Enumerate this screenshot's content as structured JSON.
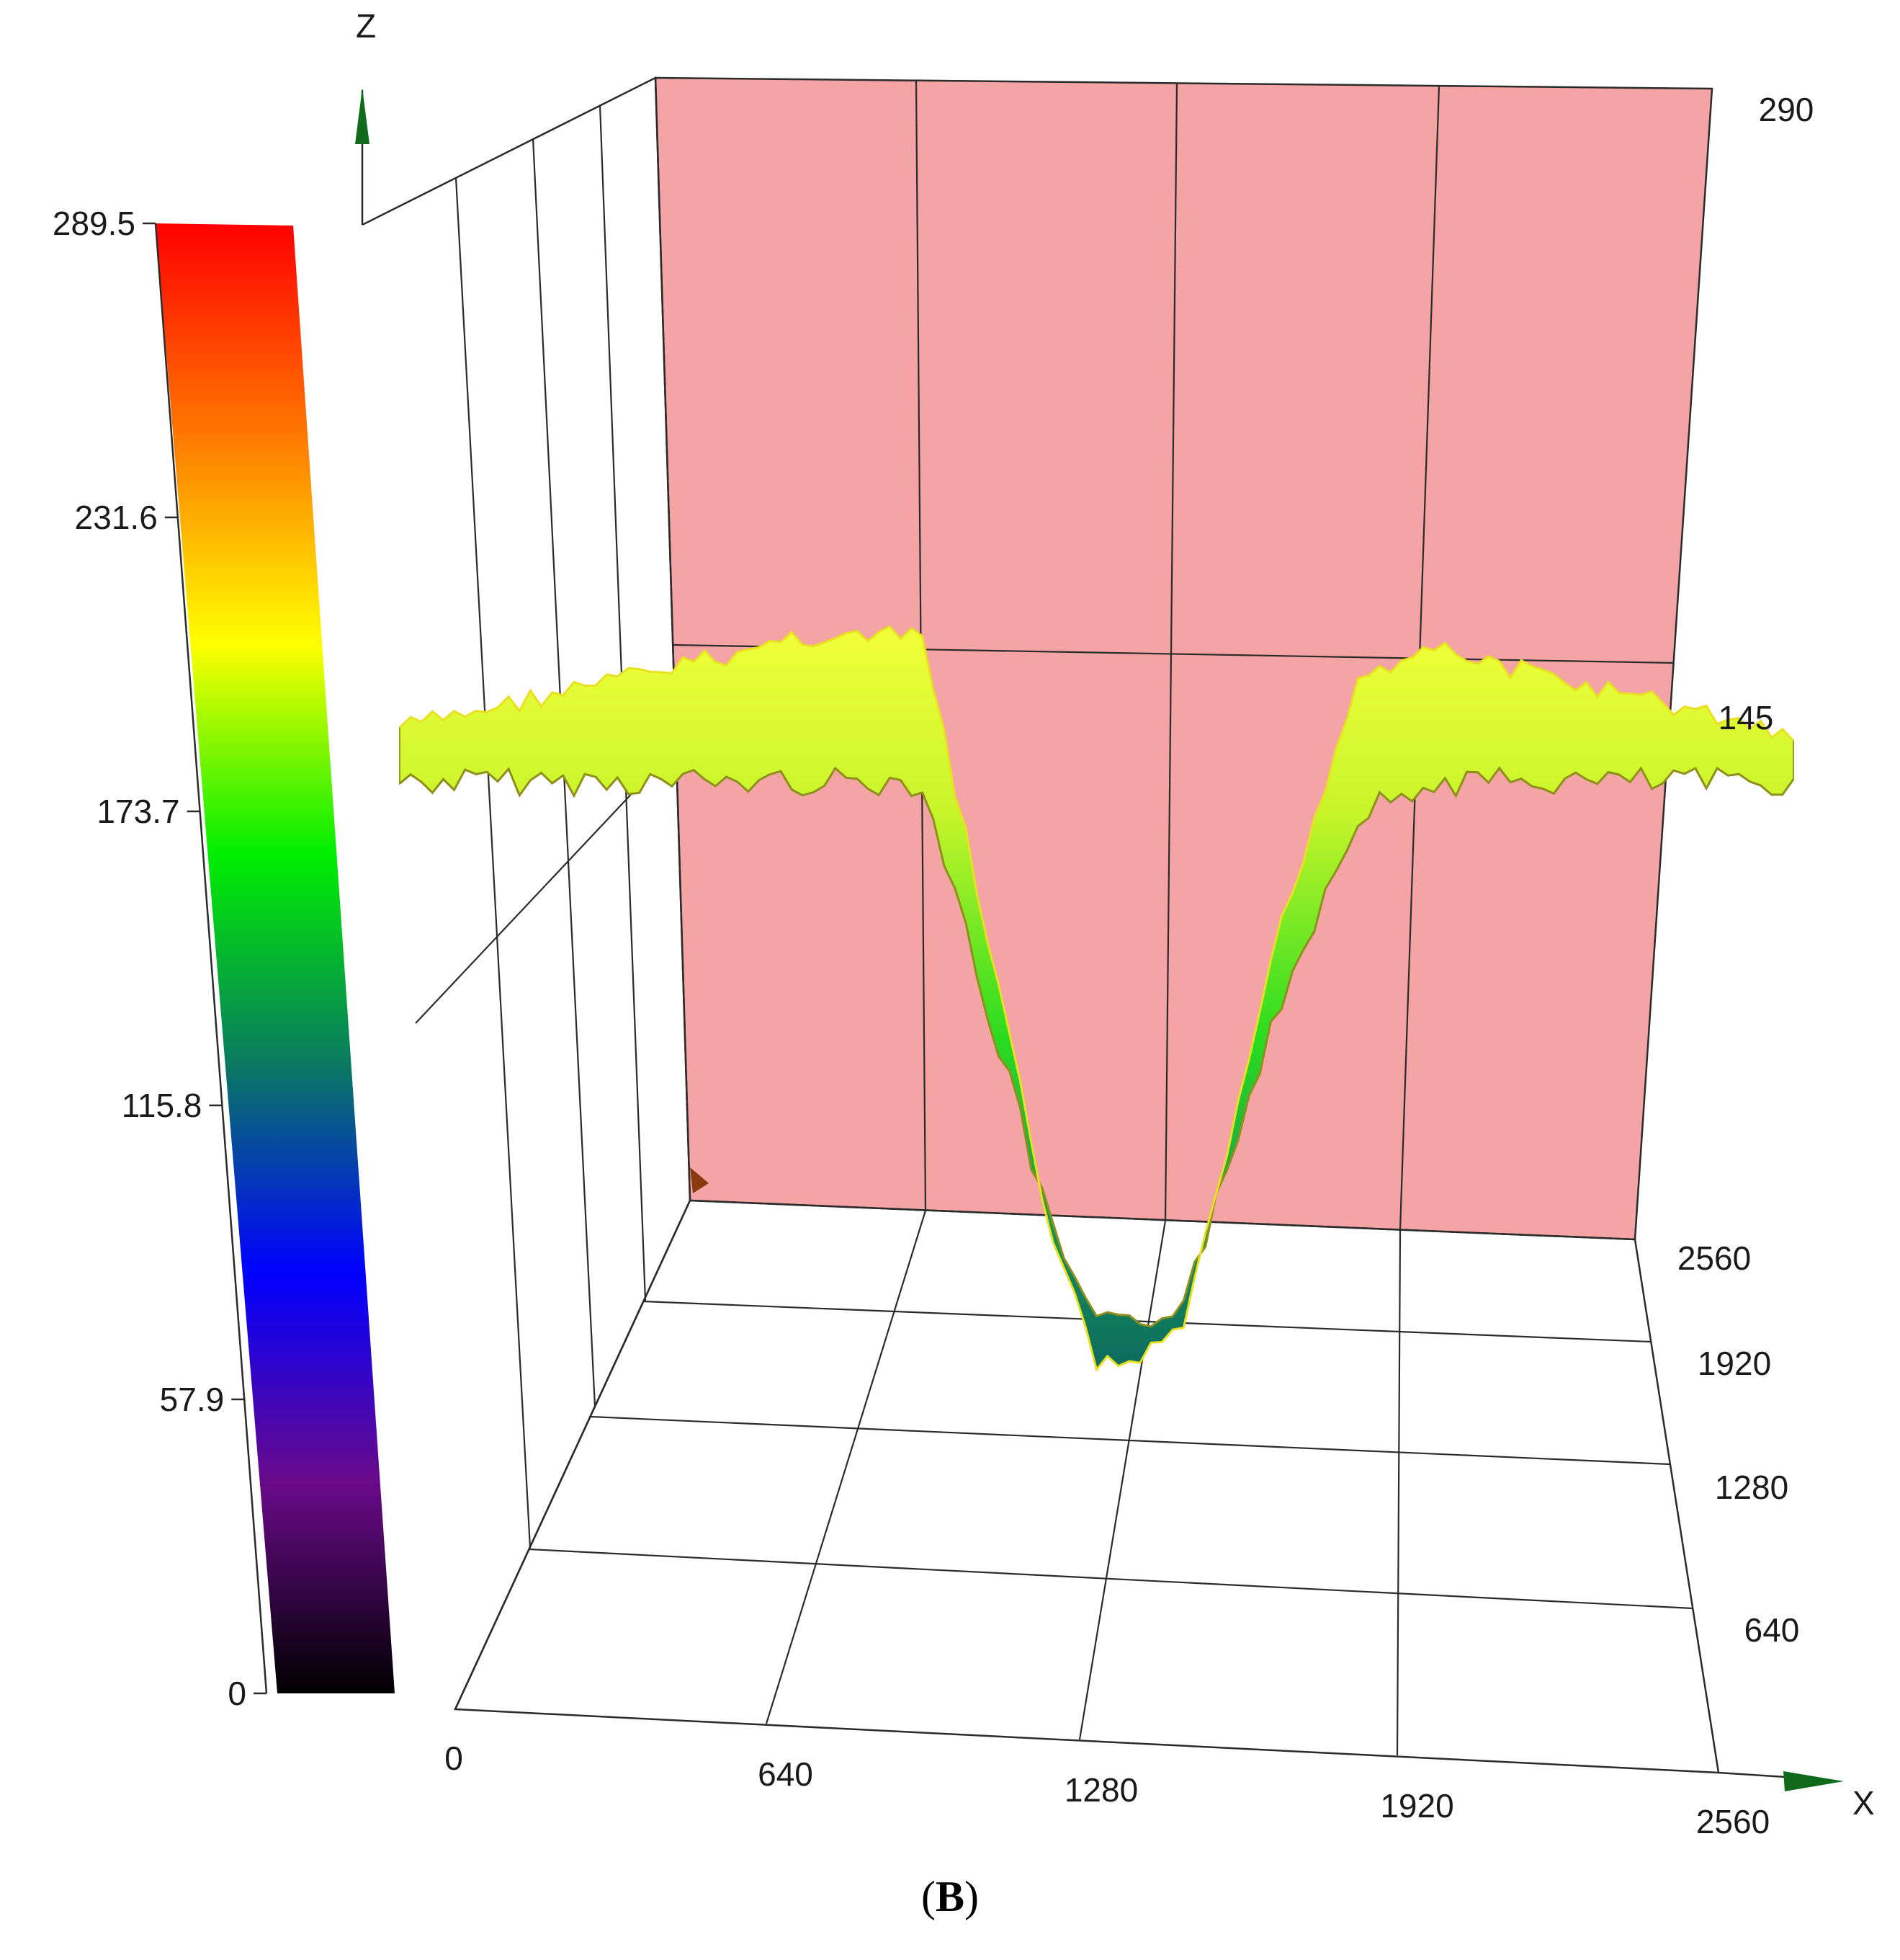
{
  "caption": {
    "open": "(",
    "letter": "B",
    "close": ")"
  },
  "chart_data": {
    "type": "surface",
    "axes": {
      "x": {
        "label": "X",
        "ticks": [
          "0",
          "640",
          "1280",
          "1920",
          "2560"
        ],
        "range": [
          0,
          2560
        ]
      },
      "y": {
        "label": "",
        "ticks": [
          "640",
          "1280",
          "1920",
          "2560"
        ],
        "range": [
          0,
          2560
        ]
      },
      "z": {
        "label": "Z",
        "ticks": [
          "145",
          "290"
        ],
        "range": [
          0,
          290
        ]
      }
    },
    "colorbar": {
      "ticks": [
        "289.5",
        "231.6",
        "173.7",
        "115.8",
        "57.9",
        "0"
      ],
      "range": [
        0,
        289.5
      ],
      "colors": [
        "#ff0000",
        "#ff7700",
        "#ffff00",
        "#00ee00",
        "#0a7a60",
        "#0000ff",
        "#6a0a8a",
        "#000000"
      ]
    },
    "profile": {
      "x": [
        0,
        320,
        640,
        960,
        1040,
        1120,
        1200,
        1280,
        1360,
        1440,
        1520,
        1600,
        1760,
        1920,
        2240,
        2560
      ],
      "z": [
        200,
        200,
        200,
        200,
        175,
        150,
        125,
        110,
        110,
        115,
        135,
        160,
        195,
        200,
        200,
        200
      ]
    },
    "back_wall_color": "#f4a4a4",
    "grid": true
  }
}
